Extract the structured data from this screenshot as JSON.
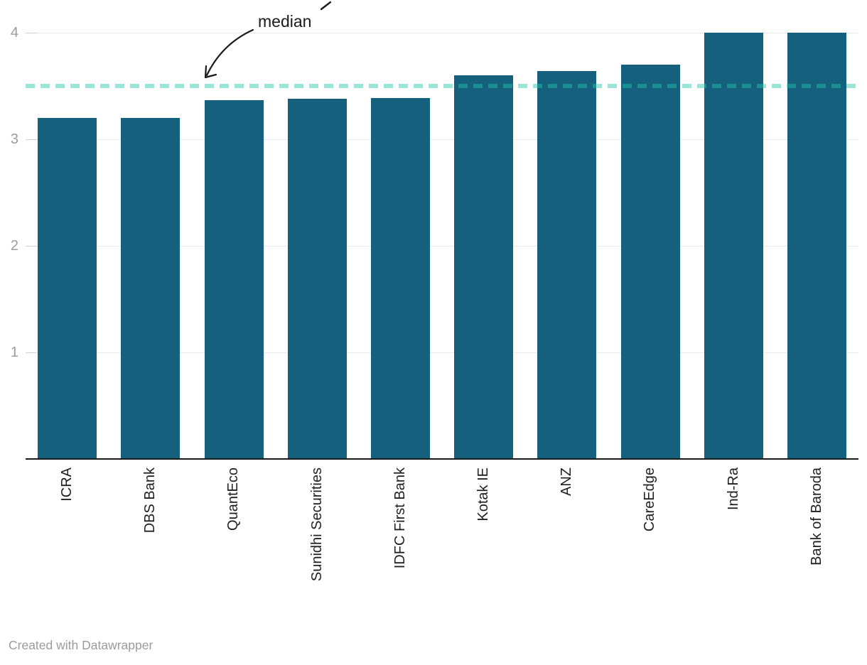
{
  "chart_data": {
    "type": "bar",
    "categories": [
      "ICRA",
      "DBS Bank",
      "QuantEco",
      "Sunidhi Securities",
      "IDFC First Bank",
      "Kotak IE",
      "ANZ",
      "CareEdge",
      "Ind-Ra",
      "Bank of Baroda"
    ],
    "values": [
      3.2,
      3.2,
      3.37,
      3.38,
      3.39,
      3.6,
      3.64,
      3.7,
      4.0,
      4.0
    ],
    "title": "",
    "xlabel": "",
    "ylabel": "",
    "ylim": [
      0,
      4
    ],
    "yticks": [
      1,
      2,
      3,
      4
    ],
    "grid": true,
    "legend": "none",
    "bar_color": "#15617d",
    "median_line": {
      "value": 3.5,
      "label": "median",
      "color": "rgba(34,197,170,0.45)"
    }
  },
  "footer": {
    "credit": "Created with Datawrapper"
  }
}
